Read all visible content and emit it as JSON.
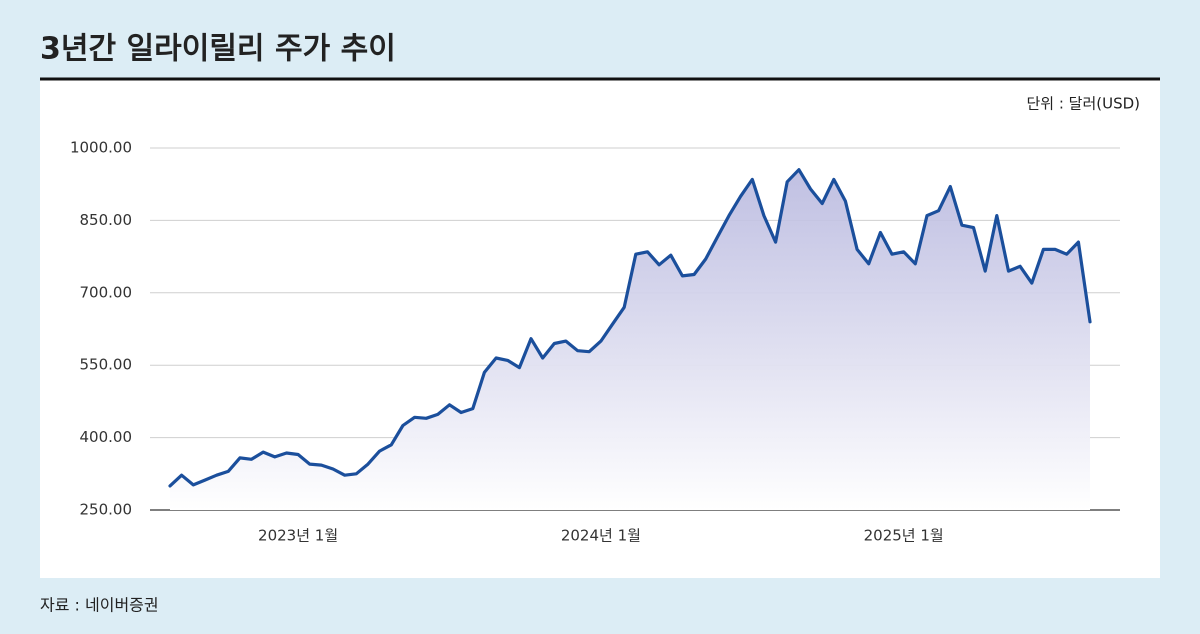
{
  "chart_data": {
    "type": "line",
    "title": "3년간 일라이릴리 주가 추이",
    "unit_label": "단위 : 달러(USD)",
    "source": "자료 : 네이버증권",
    "categories": [
      null,
      null,
      null,
      null,
      null,
      null,
      null,
      null,
      null,
      null,
      null,
      "2023년 1월",
      null,
      null,
      null,
      null,
      null,
      null,
      null,
      null,
      null,
      null,
      null,
      null,
      null,
      null,
      null,
      null,
      null,
      null,
      null,
      null,
      null,
      null,
      null,
      null,
      null,
      "2024년 1월",
      null,
      null,
      null,
      null,
      null,
      null,
      null,
      null,
      null,
      null,
      null,
      null,
      null,
      null,
      null,
      null,
      null,
      null,
      null,
      null,
      null,
      null,
      null,
      null,
      null,
      "2025년 1월",
      null,
      null,
      null,
      null,
      null,
      null,
      null,
      null,
      null,
      null,
      null,
      null,
      null,
      null,
      null,
      null
    ],
    "series": [
      {
        "name": "일라이릴리",
        "color": "#1b4f9c",
        "values": [
          300,
          322,
          302,
          312,
          322,
          330,
          358,
          355,
          370,
          360,
          368,
          365,
          345,
          343,
          335,
          322,
          325,
          345,
          372,
          385,
          425,
          442,
          440,
          448,
          468,
          452,
          460,
          535,
          565,
          560,
          545,
          605,
          565,
          595,
          600,
          580,
          578,
          600,
          635,
          670,
          780,
          785,
          758,
          778,
          735,
          738,
          770,
          815,
          860,
          900,
          935,
          860,
          805,
          930,
          955,
          915,
          885,
          935,
          890,
          790,
          760,
          825,
          780,
          785,
          760,
          860,
          870,
          920,
          840,
          835,
          745,
          860,
          745,
          755,
          720,
          790,
          790,
          780,
          805,
          640
        ]
      }
    ],
    "ylim": [
      250,
      1000
    ],
    "yticks": [
      {
        "value": 250,
        "label": "250.00"
      },
      {
        "value": 400,
        "label": "400.00"
      },
      {
        "value": 550,
        "label": "550.00"
      },
      {
        "value": 700,
        "label": "700.00"
      },
      {
        "value": 850,
        "label": "850.00"
      },
      {
        "value": 1000,
        "label": "1000.00"
      }
    ],
    "grid": true
  }
}
